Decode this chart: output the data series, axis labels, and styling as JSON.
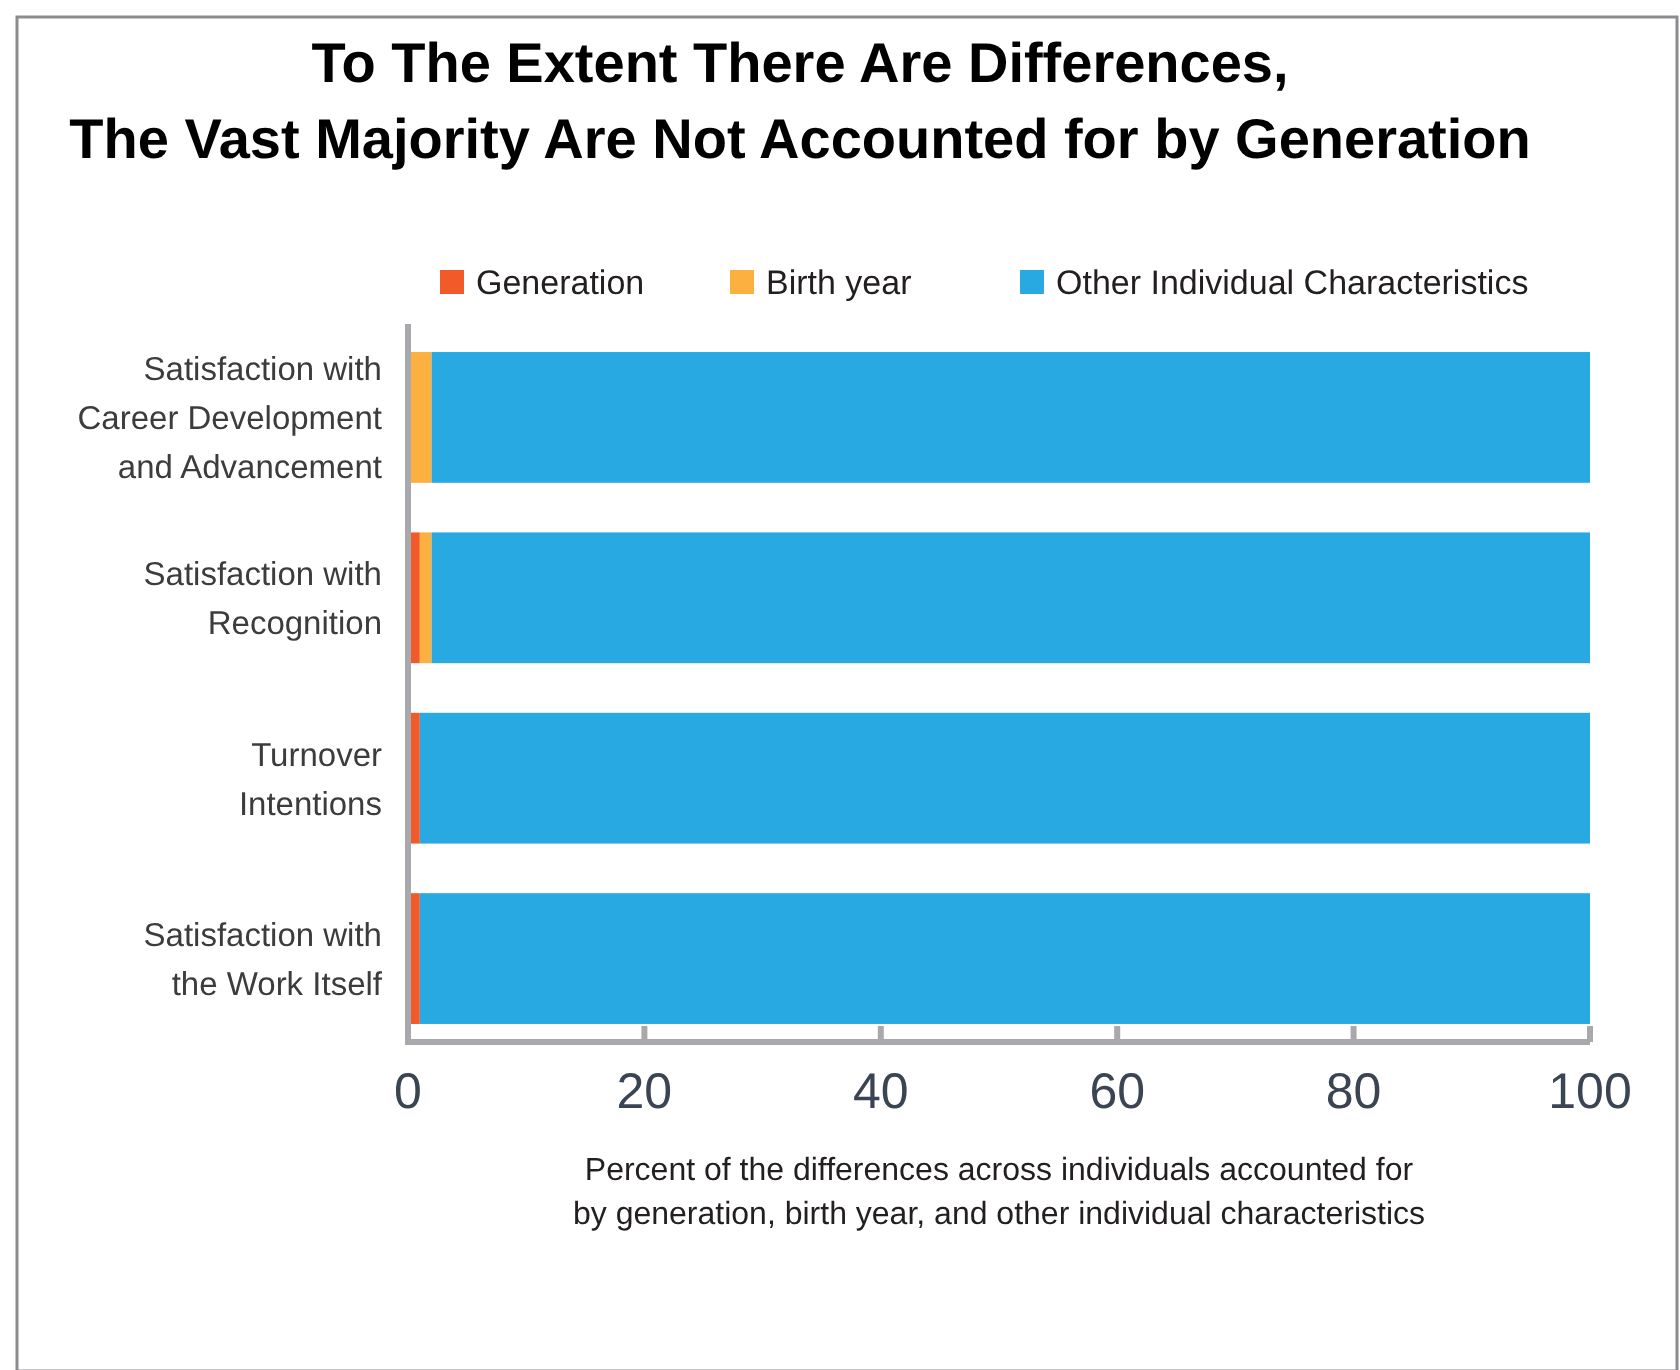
{
  "chart_data": {
    "type": "bar",
    "orientation": "horizontal",
    "stacked": true,
    "title": "To The Extent There Are Differences,\nThe Vast Majority Are Not Accounted for by Generation",
    "xlabel": "Percent of the differences across individuals accounted for\nby generation, birth year, and other individual characteristics",
    "categories": [
      "Satisfaction with\nCareer Development\nand Advancement",
      "Satisfaction with\nRecognition",
      "Turnover\nIntentions",
      "Satisfaction with\nthe Work Itself"
    ],
    "series": [
      {
        "name": "Generation",
        "color": "#f15a29",
        "values": [
          0,
          1,
          1,
          1
        ]
      },
      {
        "name": "Birth year",
        "color": "#fbb040",
        "values": [
          2,
          1,
          0,
          0
        ]
      },
      {
        "name": "Other Individual Characteristics",
        "color": "#29a9e1",
        "values": [
          98,
          98,
          99,
          99
        ]
      }
    ],
    "xlim": [
      0,
      100
    ],
    "xticks": [
      0,
      20,
      40,
      60,
      80,
      100
    ],
    "legend": "top"
  }
}
